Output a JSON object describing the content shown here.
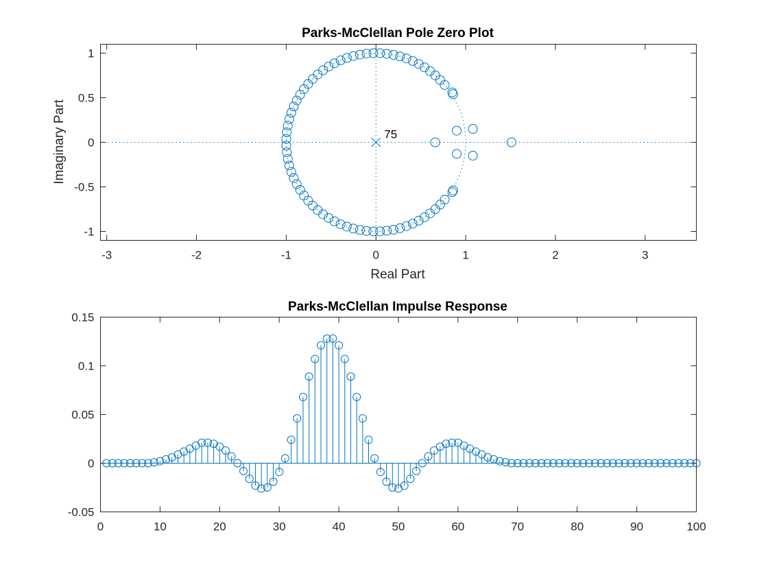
{
  "chart_data": [
    {
      "type": "scatter",
      "title": "Parks-McClellan Pole Zero Plot",
      "xlabel": "Real Part",
      "ylabel": "Imaginary Part",
      "xlim": [
        -3.07,
        3.57
      ],
      "ylim": [
        -1.1,
        1.1
      ],
      "xticks": [
        -3,
        -2,
        -1,
        0,
        1,
        2,
        3
      ],
      "yticks": [
        -1,
        -0.5,
        0,
        0.5,
        1
      ],
      "grid": false,
      "series_color": "#0072BD",
      "poles": {
        "points": [
          [
            0,
            0
          ]
        ],
        "multiplicity_label": "75"
      },
      "zeros": {
        "unit_circle": {
          "start_angle_deg": 40,
          "end_angle_deg": 320,
          "count": 66,
          "radius": 1.0,
          "cluster_near_edge": [
            [
              0.85,
              0.56
            ],
            [
              0.86,
              0.54
            ],
            [
              0.85,
              -0.56
            ],
            [
              0.86,
              -0.54
            ]
          ]
        },
        "off_circle": [
          [
            0.66,
            0
          ],
          [
            0.9,
            0.13
          ],
          [
            0.9,
            -0.13
          ],
          [
            1.08,
            0.15
          ],
          [
            1.08,
            -0.15
          ],
          [
            1.51,
            0
          ]
        ]
      }
    },
    {
      "type": "stem",
      "title": "Parks-McClellan Impulse Response",
      "xlabel": "",
      "ylabel": "",
      "xlim": [
        0,
        100
      ],
      "ylim": [
        -0.05,
        0.15
      ],
      "xticks": [
        0,
        10,
        20,
        30,
        40,
        50,
        60,
        70,
        80,
        90,
        100
      ],
      "yticks": [
        -0.05,
        0,
        0.05,
        0.1,
        0.15
      ],
      "grid": false,
      "series_color": "#0072BD",
      "x": [
        1,
        2,
        3,
        4,
        5,
        6,
        7,
        8,
        9,
        10,
        11,
        12,
        13,
        14,
        15,
        16,
        17,
        18,
        19,
        20,
        21,
        22,
        23,
        24,
        25,
        26,
        27,
        28,
        29,
        30,
        31,
        32,
        33,
        34,
        35,
        36,
        37,
        38,
        39,
        40,
        41,
        42,
        43,
        44,
        45,
        46,
        47,
        48,
        49,
        50,
        51,
        52,
        53,
        54,
        55,
        56,
        57,
        58,
        59,
        60,
        61,
        62,
        63,
        64,
        65,
        66,
        67,
        68,
        69,
        70,
        71,
        72,
        73,
        74,
        75,
        76,
        77,
        78,
        79,
        80,
        81,
        82,
        83,
        84,
        85,
        86,
        87,
        88,
        89,
        90,
        91,
        92,
        93,
        94,
        95,
        96,
        97,
        98,
        99,
        100
      ],
      "values": [
        0,
        0,
        0,
        0,
        0,
        0,
        0,
        0,
        0.001,
        0.002,
        0.004,
        0.006,
        0.009,
        0.012,
        0.015,
        0.018,
        0.021,
        0.021,
        0.02,
        0.017,
        0.013,
        0.007,
        0,
        -0.008,
        -0.016,
        -0.023,
        -0.026,
        -0.025,
        -0.019,
        -0.009,
        0.005,
        0.024,
        0.046,
        0.068,
        0.089,
        0.107,
        0.121,
        0.128,
        0.128,
        0.121,
        0.107,
        0.089,
        0.068,
        0.046,
        0.024,
        0.005,
        -0.009,
        -0.019,
        -0.025,
        -0.026,
        -0.023,
        -0.016,
        -0.008,
        0,
        0.007,
        0.013,
        0.017,
        0.02,
        0.021,
        0.021,
        0.018,
        0.015,
        0.012,
        0.009,
        0.006,
        0.004,
        0.002,
        0.001,
        0,
        0,
        0,
        0,
        0,
        0,
        0,
        0,
        0,
        0,
        0,
        0,
        0,
        0,
        0,
        0,
        0,
        0,
        0,
        0,
        0,
        0,
        0,
        0,
        0,
        0,
        0,
        0,
        0,
        0,
        0,
        0
      ]
    }
  ]
}
